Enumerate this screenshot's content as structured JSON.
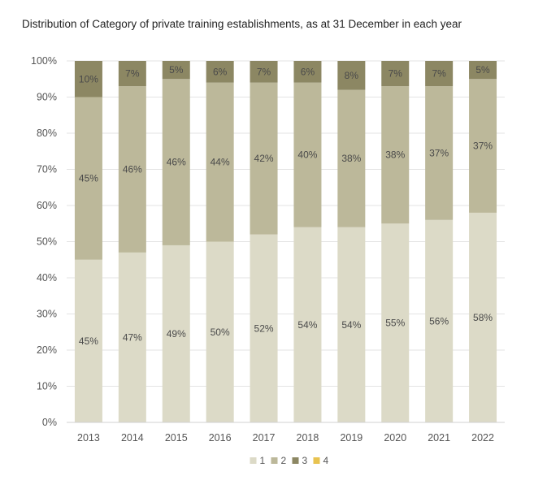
{
  "chart_data": {
    "type": "bar",
    "stacked": true,
    "normalized": true,
    "title": "Distribution of Category of private training establishments, as at 31 December in each year",
    "xlabel": "",
    "ylabel": "",
    "ylim": [
      0,
      100
    ],
    "yticks": [
      "0%",
      "10%",
      "20%",
      "30%",
      "40%",
      "50%",
      "60%",
      "70%",
      "80%",
      "90%",
      "100%"
    ],
    "grid": true,
    "legend_position": "bottom",
    "categories": [
      "2013",
      "2014",
      "2015",
      "2016",
      "2017",
      "2018",
      "2019",
      "2020",
      "2021",
      "2022"
    ],
    "series": [
      {
        "name": "1",
        "color": "#dcdac7",
        "values": [
          45,
          47,
          49,
          50,
          52,
          54,
          54,
          55,
          56,
          58
        ],
        "labels": [
          "45%",
          "47%",
          "49%",
          "50%",
          "52%",
          "54%",
          "54%",
          "55%",
          "56%",
          "58%"
        ]
      },
      {
        "name": "2",
        "color": "#bcb89a",
        "values": [
          45,
          46,
          46,
          44,
          42,
          40,
          38,
          38,
          37,
          37
        ],
        "labels": [
          "45%",
          "46%",
          "46%",
          "44%",
          "42%",
          "40%",
          "38%",
          "38%",
          "37%",
          "37%"
        ]
      },
      {
        "name": "3",
        "color": "#8c8763",
        "values": [
          10,
          7,
          5,
          6,
          7,
          6,
          8,
          7,
          7,
          5
        ],
        "labels": [
          "10%",
          "7%",
          "5%",
          "6%",
          "7%",
          "6%",
          "8%",
          "7%",
          "7%",
          "5%"
        ]
      },
      {
        "name": "4",
        "color": "#e8c350",
        "values": [
          1,
          0,
          0.4,
          0.5,
          0,
          0,
          0.4,
          0,
          0,
          0
        ],
        "labels": []
      }
    ]
  }
}
